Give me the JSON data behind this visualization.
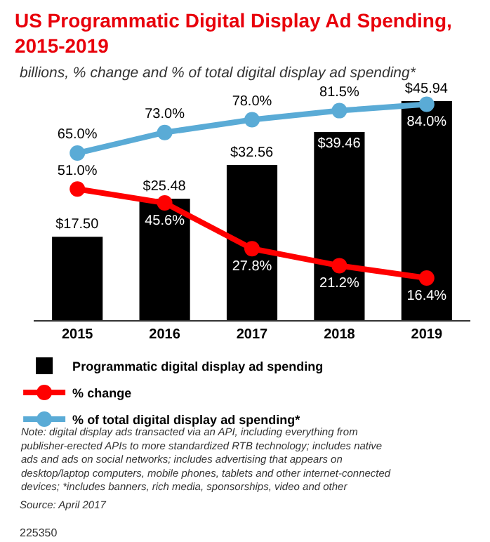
{
  "chart_data": {
    "type": "bar",
    "title": "US Programmatic Digital Display Ad Spending, 2015-2019",
    "subtitle": "billions, % change and % of total digital display ad spending*",
    "categories": [
      "2015",
      "2016",
      "2017",
      "2018",
      "2019"
    ],
    "series": [
      {
        "name": "Programmatic digital display ad spending",
        "color": "#000000",
        "values": [
          17.5,
          25.48,
          32.56,
          39.46,
          45.94
        ],
        "value_labels": [
          "$17.50",
          "$25.48",
          "$32.56",
          "$39.46",
          "$45.94"
        ]
      },
      {
        "name": "% change",
        "type": "line",
        "axis": "y2",
        "color": "#ff0000",
        "values": [
          51.0,
          45.6,
          27.8,
          21.2,
          16.4
        ],
        "value_labels": [
          "51.0%",
          "45.6%",
          "27.8%",
          "21.2%",
          "16.4%"
        ]
      },
      {
        "name": "% of total digital display ad spending*",
        "type": "line",
        "axis": "y2",
        "color": "#5aabd6",
        "values": [
          65.0,
          73.0,
          78.0,
          81.5,
          84.0
        ],
        "value_labels": [
          "65.0%",
          "73.0%",
          "78.0%",
          "81.5%",
          "84.0%"
        ]
      }
    ],
    "tick_labels": "x",
    "grid": false,
    "legend": "bottom",
    "marker": "circle",
    "line_style": "solid",
    "annotations": [
      "Note: digital display ads transacted via an API, including everything from publisher-erected APIs to more standardized RTB technology; includes native ads and ads on social networks; includes advertising that appears on desktop/laptop computers, mobile phones, tablets and other internet-connected devices; *includes banners, rich media, sponsorships, video and other",
      "Source: April 2017",
      "225350"
    ]
  }
}
